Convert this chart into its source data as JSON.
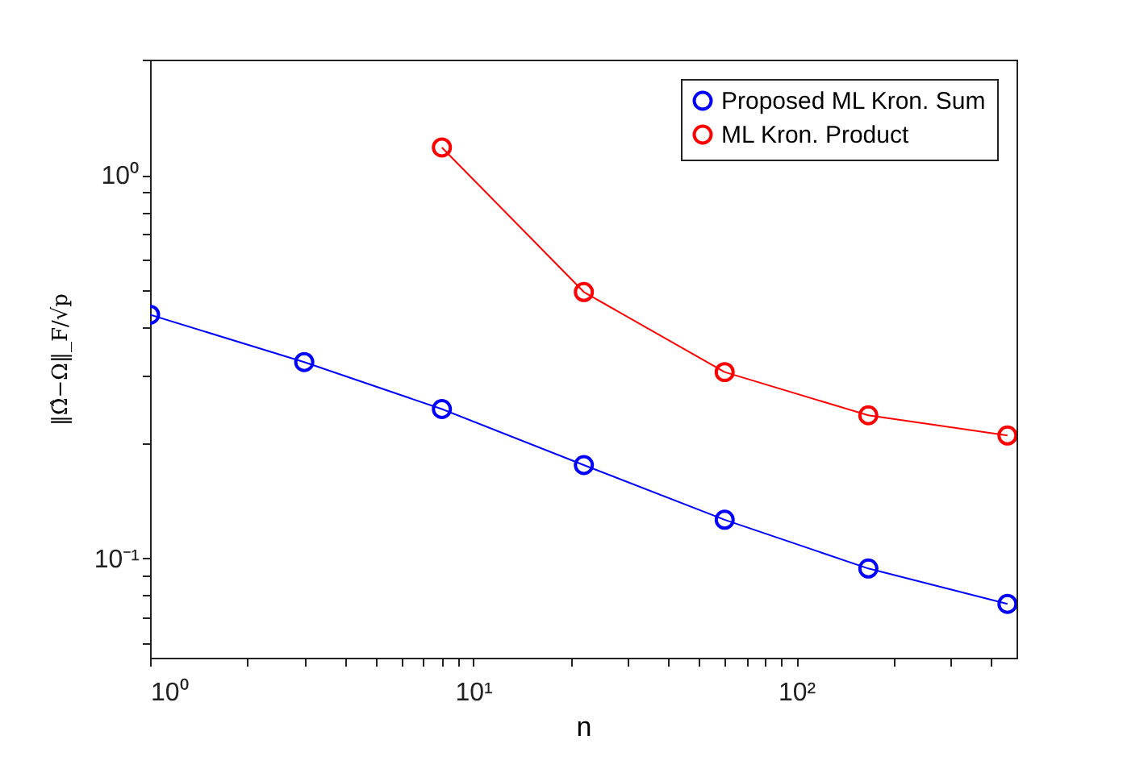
{
  "chart_data": {
    "type": "line",
    "xlabel": "n",
    "ylabel": "‖Ω̂−Ω‖_F/√p",
    "log": "xy",
    "grid": false,
    "legend": "top right",
    "marker": "circle",
    "line_style": "solid",
    "xlim": [
      1,
      480
    ],
    "ylim": [
      0.055,
      2
    ],
    "xticks": [
      {
        "value": 1,
        "label": "10⁰"
      },
      {
        "value": 2,
        "label": null
      },
      {
        "value": 3,
        "label": null
      },
      {
        "value": 4,
        "label": null
      },
      {
        "value": 5,
        "label": null
      },
      {
        "value": 6,
        "label": null
      },
      {
        "value": 7,
        "label": null
      },
      {
        "value": 8,
        "label": null
      },
      {
        "value": 9,
        "label": null
      },
      {
        "value": 10,
        "label": "10¹"
      },
      {
        "value": 20,
        "label": null
      },
      {
        "value": 30,
        "label": null
      },
      {
        "value": 40,
        "label": null
      },
      {
        "value": 50,
        "label": null
      },
      {
        "value": 60,
        "label": null
      },
      {
        "value": 70,
        "label": null
      },
      {
        "value": 80,
        "label": null
      },
      {
        "value": 90,
        "label": null
      },
      {
        "value": 100,
        "label": "10²"
      },
      {
        "value": 200,
        "label": null
      },
      {
        "value": 300,
        "label": null
      },
      {
        "value": 400,
        "label": null
      }
    ],
    "yticks": [
      {
        "value": 0.06,
        "label": null
      },
      {
        "value": 0.07,
        "label": null
      },
      {
        "value": 0.08,
        "label": null
      },
      {
        "value": 0.09,
        "label": null
      },
      {
        "value": 0.1,
        "label": "10⁻¹"
      },
      {
        "value": 0.2,
        "label": null
      },
      {
        "value": 0.3,
        "label": null
      },
      {
        "value": 0.4,
        "label": null
      },
      {
        "value": 0.5,
        "label": null
      },
      {
        "value": 0.6,
        "label": null
      },
      {
        "value": 0.7,
        "label": null
      },
      {
        "value": 0.8,
        "label": null
      },
      {
        "value": 0.9,
        "label": null
      },
      {
        "value": 1,
        "label": "10⁰"
      },
      {
        "value": 2,
        "label": null
      }
    ],
    "x": [
      1,
      3,
      8,
      22,
      60,
      167,
      450
    ],
    "series": [
      {
        "name": "Proposed ML Kron. Sum",
        "color": "#0000ff",
        "values": [
          0.432,
          0.325,
          0.245,
          0.175,
          0.126,
          0.094,
          0.076
        ]
      },
      {
        "name": "ML Kron. Product",
        "color": "#ff0000",
        "values": [
          null,
          null,
          1.18,
          0.495,
          0.306,
          0.236,
          0.209
        ]
      }
    ]
  }
}
